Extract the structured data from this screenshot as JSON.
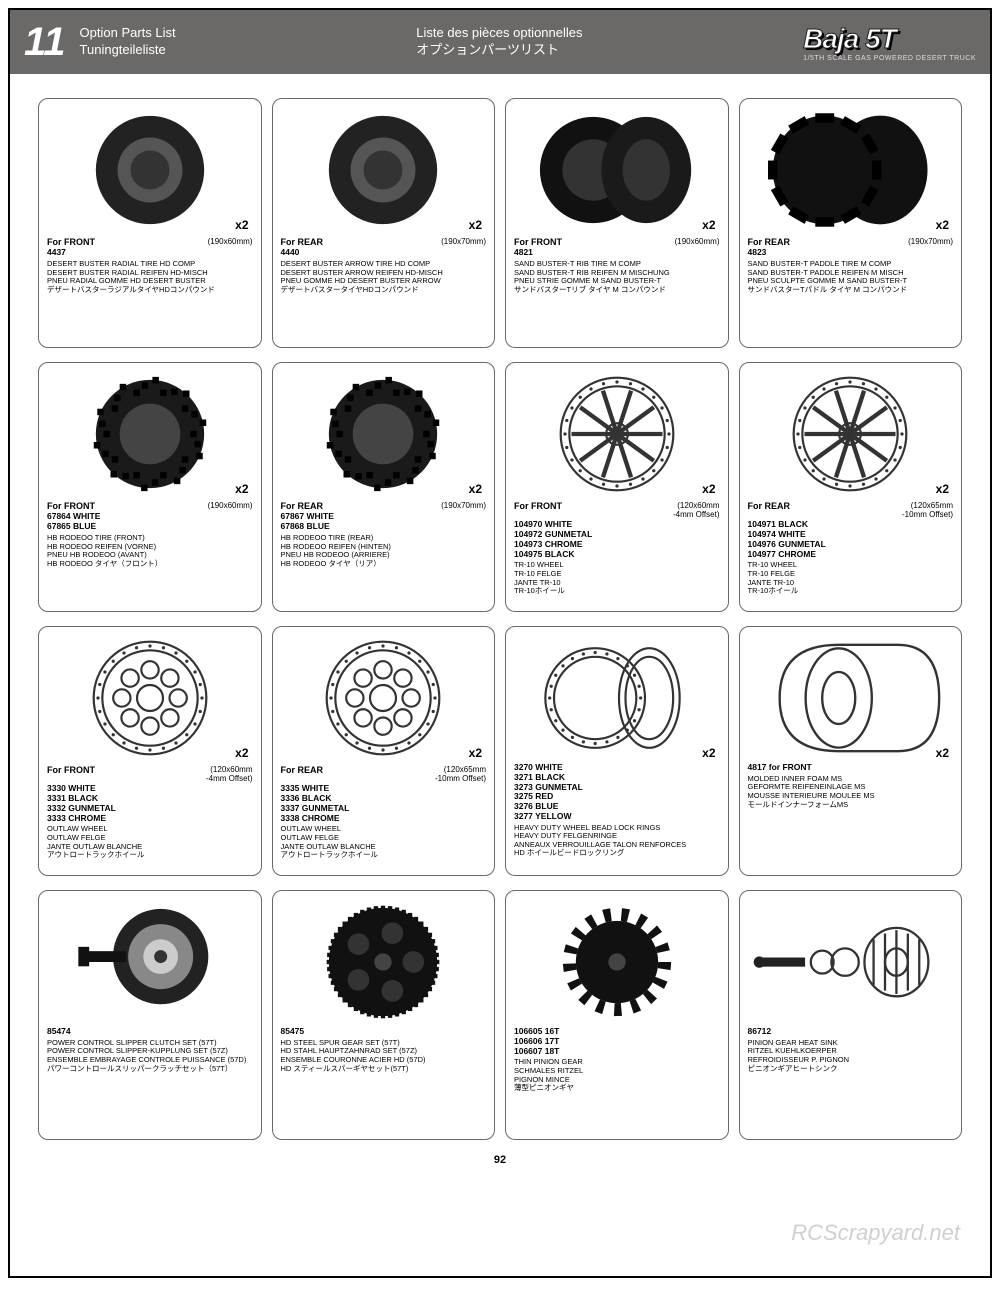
{
  "header": {
    "section_number": "11",
    "title_en": "Option Parts List",
    "title_fr": "Liste des pièces optionnelles",
    "title_de": "Tuningteileliste",
    "title_jp": "オプションパーツリスト",
    "brand": "Baja 5T",
    "brand_sub": "1/5TH SCALE GAS POWERED DESERT TRUCK"
  },
  "page_number": "92",
  "watermark": "RCScrapyard.net",
  "cards": [
    {
      "icon": "tire-tread",
      "qty": "x2",
      "position": "For FRONT",
      "size": "(190x60mm)",
      "codes": "4437",
      "desc": "DESERT BUSTER RADIAL TIRE HD COMP\nDESERT BUSTER RADIAL REIFEN HD-MISCH\nPNEU RADIAL GOMME HD DESERT BUSTER\nデザートバスターラジアルタイヤHDコンパウンド"
    },
    {
      "icon": "tire-tread",
      "qty": "x2",
      "position": "For REAR",
      "size": "(190x70mm)",
      "codes": "4440",
      "desc": "DESERT BUSTER ARROW TIRE HD COMP\nDESERT BUSTER ARROW REIFEN HD-MISCH\nPNEU GOMME HD DESERT BUSTER ARROW\nデザートバスタータイヤHDコンパウンド"
    },
    {
      "icon": "tire-slick",
      "qty": "x2",
      "position": "For FRONT",
      "size": "(190x60mm)",
      "codes": "4821",
      "desc": "SAND BUSTER-T RIB TIRE M COMP\nSAND BUSTER-T RIB REIFEN M MISCHUNG\nPNEU STRIE GOMME M SAND BUSTER-T\nサンドバスターTリブ タイヤ M コンパウンド"
    },
    {
      "icon": "tire-paddle",
      "qty": "x2",
      "position": "For REAR",
      "size": "(190x70mm)",
      "codes": "4823",
      "desc": "SAND BUSTER-T PADDLE TIRE M COMP\nSAND BUSTER-T PADDLE REIFEN M MISCH\nPNEU SCULPTE GOMME M SAND BUSTER-T\nサンドバスターTパドル タイヤ M コンパウンド"
    },
    {
      "icon": "tire-knobby",
      "qty": "x2",
      "position": "For FRONT",
      "size": "(190x60mm)",
      "codes": "67864 WHITE\n67865 BLUE",
      "desc": "HB RODEOO TIRE (FRONT)\nHB RODEOO REIFEN (VORNE)\nPNEU HB RODEOO (AVANT)\nHB RODEOO タイヤ（フロント）"
    },
    {
      "icon": "tire-knobby",
      "qty": "x2",
      "position": "For REAR",
      "size": "(190x70mm)",
      "codes": "67867 WHITE\n67868 BLUE",
      "desc": "HB RODEOO TIRE (REAR)\nHB RODEOO REIFEN (HINTEN)\nPNEU HB RODEOO (ARRIERE)\nHB RODEOO タイヤ（リア）"
    },
    {
      "icon": "wheel-spoke",
      "qty": "x2",
      "position": "For FRONT",
      "size": "(120x60mm\n-4mm Offset)",
      "codes": "104970 WHITE\n104972 GUNMETAL\n104973 CHROME\n104975 BLACK",
      "desc": "TR-10 WHEEL\nTR-10 FELGE\nJANTE TR-10\nTR-10ホイール"
    },
    {
      "icon": "wheel-spoke",
      "qty": "x2",
      "position": "For REAR",
      "size": "(120x65mm\n-10mm Offset)",
      "codes": "104971 BLACK\n104974 WHITE\n104976 GUNMETAL\n104977 CHROME",
      "desc": "TR-10 WHEEL\nTR-10 FELGE\nJANTE TR-10\nTR-10ホイール"
    },
    {
      "icon": "wheel-hole",
      "qty": "x2",
      "position": "For FRONT",
      "size": "(120x60mm\n-4mm Offset)",
      "codes": "3330 WHITE\n3331 BLACK\n3332 GUNMETAL\n3333 CHROME",
      "desc": "OUTLAW WHEEL\nOUTLAW FELGE\nJANTE OUTLAW BLANCHE\nアウトロートラックホイール"
    },
    {
      "icon": "wheel-hole",
      "qty": "x2",
      "position": "For REAR",
      "size": "(120x65mm\n-10mm Offset)",
      "codes": "3335 WHITE\n3336 BLACK\n3337 GUNMETAL\n3338 CHROME",
      "desc": "OUTLAW WHEEL\nOUTLAW FELGE\nJANTE OUTLAW BLANCHE\nアウトロートラックホイール"
    },
    {
      "icon": "rings",
      "qty": "x2",
      "position": "",
      "size": "",
      "codes": "3270 WHITE\n3271 BLACK\n3273 GUNMETAL\n3275 RED\n3276 BLUE\n3277 YELLOW",
      "desc": "HEAVY DUTY WHEEL BEAD LOCK RINGS\nHEAVY DUTY FELGENRINGE\nANNEAUX VERROUILLAGE TALON RENFORCES\nHD ホイールビードロックリング"
    },
    {
      "icon": "foam",
      "qty": "x2",
      "position": "",
      "size": "",
      "codes": "4817  for FRONT",
      "desc": "MOLDED INNER FOAM MS\nGEFORMTE REIFENEINLAGE MS\nMOUSSE INTERIEURE MOULEE MS\nモールドインナーフォームMS"
    },
    {
      "icon": "slipper",
      "qty": "",
      "position": "",
      "size": "",
      "codes": "85474",
      "desc": "POWER CONTROL SLIPPER CLUTCH SET (57T)\nPOWER CONTROL SLIPPER-KUPPLUNG SET (57Z)\nENSEMBLE EMBRAYAGE CONTROLE PUISSANCE (57D)\nパワーコントロールスリッパークラッチセット（57T）"
    },
    {
      "icon": "spur",
      "qty": "",
      "position": "",
      "size": "",
      "codes": "85475",
      "desc": "HD STEEL SPUR GEAR SET (57T)\nHD STAHL HAUPTZAHNRAD SET (57Z)\nENSEMBLE COURONNE ACIER HD (57D)\nHD スティールスパーギヤセット(57T)"
    },
    {
      "icon": "pinion",
      "qty": "",
      "position": "",
      "size": "",
      "codes": "106605 16T\n106606 17T\n106607 18T",
      "desc": "THIN PINION GEAR\nSCHMALES RITZEL\nPIGNON MINCE\n薄型ピニオンギヤ"
    },
    {
      "icon": "heatsink",
      "qty": "",
      "position": "",
      "size": "",
      "codes": "86712",
      "desc": "PINION GEAR HEAT SINK\nRITZEL KUEHLKOERPER\nREFROIDISSEUR P. PIGNON\nピニオンギアヒートシンク"
    }
  ]
}
